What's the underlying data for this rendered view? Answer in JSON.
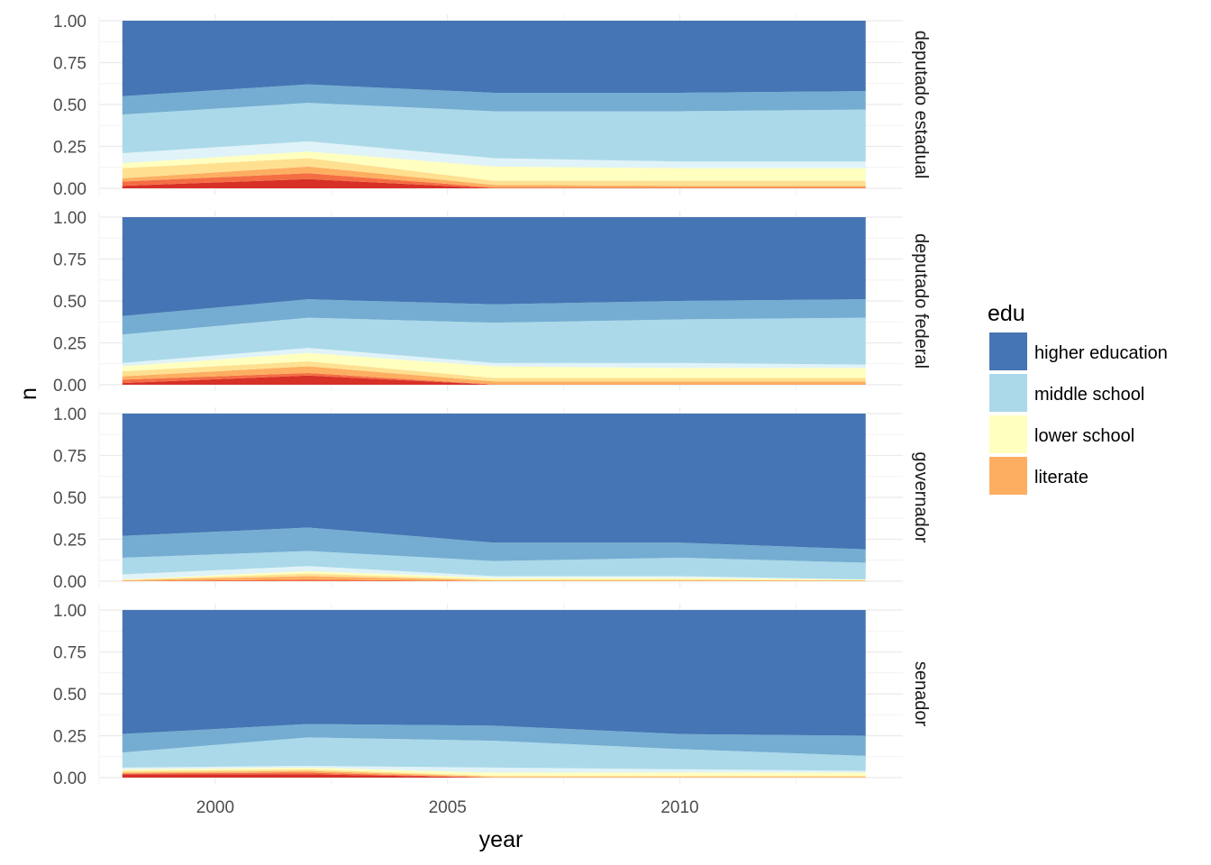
{
  "chart_data": {
    "type": "area",
    "stacked": true,
    "normalized": true,
    "xlabel": "year",
    "ylabel": "n",
    "x": [
      1998,
      2002,
      2006,
      2010,
      2014
    ],
    "xticks": [
      2000,
      2005,
      2010
    ],
    "xtick_labels": [
      "2000",
      "2005",
      "2010"
    ],
    "xlim": [
      1997.5,
      2014.8
    ],
    "yticks": [
      0,
      0.25,
      0.5,
      0.75,
      1.0
    ],
    "ytick_labels": [
      "0.00",
      "0.25",
      "0.50",
      "0.75",
      "1.00"
    ],
    "ylim": [
      0,
      1
    ],
    "grid": true,
    "legend": {
      "title": "edu",
      "position": "right",
      "entries": [
        {
          "label": "higher education",
          "color": "#4575b4"
        },
        {
          "label": "middle school",
          "color": "#abd9e9"
        },
        {
          "label": "lower school",
          "color": "#ffffbf"
        },
        {
          "label": "literate",
          "color": "#fdae61"
        }
      ]
    },
    "layer_colors": [
      "#d73027",
      "#f46d43",
      "#fdae61",
      "#fee090",
      "#ffffbf",
      "#e0f3f8",
      "#abd9e9",
      "#74add1",
      "#4575b4"
    ],
    "panels": [
      {
        "label": "deputado estadual",
        "cumulative": [
          [
            0.015,
            0.055,
            0.0,
            0.0,
            0.0
          ],
          [
            0.04,
            0.09,
            0.005,
            0.005,
            0.005
          ],
          [
            0.06,
            0.13,
            0.02,
            0.015,
            0.015
          ],
          [
            0.12,
            0.18,
            0.045,
            0.045,
            0.045
          ],
          [
            0.15,
            0.22,
            0.13,
            0.12,
            0.12
          ],
          [
            0.21,
            0.28,
            0.18,
            0.16,
            0.16
          ],
          [
            0.44,
            0.51,
            0.46,
            0.46,
            0.47
          ],
          [
            0.55,
            0.62,
            0.57,
            0.57,
            0.58
          ],
          [
            1,
            1,
            1,
            1,
            1
          ]
        ]
      },
      {
        "label": "deputado federal",
        "cumulative": [
          [
            0.01,
            0.055,
            0.0,
            0.0,
            0.0
          ],
          [
            0.03,
            0.07,
            0.002,
            0.002,
            0.002
          ],
          [
            0.05,
            0.11,
            0.02,
            0.02,
            0.02
          ],
          [
            0.08,
            0.14,
            0.04,
            0.04,
            0.04
          ],
          [
            0.11,
            0.19,
            0.11,
            0.1,
            0.1
          ],
          [
            0.13,
            0.22,
            0.13,
            0.13,
            0.12
          ],
          [
            0.3,
            0.4,
            0.37,
            0.39,
            0.4
          ],
          [
            0.41,
            0.51,
            0.48,
            0.5,
            0.51
          ],
          [
            1,
            1,
            1,
            1,
            1
          ]
        ]
      },
      {
        "label": "governador",
        "cumulative": [
          [
            0.0,
            0.0,
            0.0,
            0.0,
            0.0
          ],
          [
            0.0,
            0.01,
            0.0,
            0.0,
            0.0
          ],
          [
            0.005,
            0.03,
            0.005,
            0.005,
            0.005
          ],
          [
            0.008,
            0.045,
            0.01,
            0.012,
            0.005
          ],
          [
            0.01,
            0.06,
            0.02,
            0.02,
            0.01
          ],
          [
            0.04,
            0.09,
            0.03,
            0.03,
            0.01
          ],
          [
            0.14,
            0.18,
            0.12,
            0.14,
            0.11
          ],
          [
            0.27,
            0.32,
            0.23,
            0.23,
            0.19
          ],
          [
            1,
            1,
            1,
            1,
            1
          ]
        ]
      },
      {
        "label": "senador",
        "cumulative": [
          [
            0.02,
            0.02,
            0.0,
            0.0,
            0.0
          ],
          [
            0.025,
            0.03,
            0.0,
            0.0,
            0.0
          ],
          [
            0.03,
            0.04,
            0.005,
            0.005,
            0.005
          ],
          [
            0.04,
            0.05,
            0.01,
            0.01,
            0.01
          ],
          [
            0.05,
            0.06,
            0.03,
            0.03,
            0.03
          ],
          [
            0.06,
            0.07,
            0.06,
            0.05,
            0.04
          ],
          [
            0.15,
            0.24,
            0.22,
            0.17,
            0.13
          ],
          [
            0.26,
            0.32,
            0.31,
            0.26,
            0.25
          ],
          [
            1,
            1,
            1,
            1,
            1
          ]
        ]
      }
    ]
  }
}
